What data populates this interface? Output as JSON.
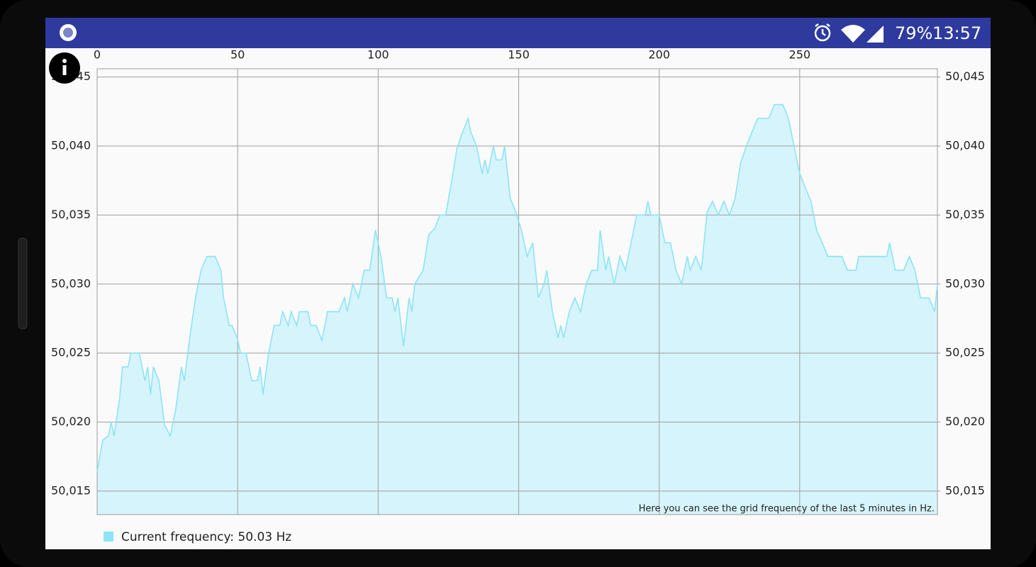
{
  "status_bar": {
    "battery": "79%",
    "time": "13:57"
  },
  "chart_data": {
    "type": "area",
    "annotation": "Here you can see the grid frequency of the last 5 minutes in Hz.",
    "x": [
      0,
      2,
      4,
      5,
      6,
      8,
      9,
      11,
      12,
      15,
      17,
      18,
      19,
      20,
      22,
      24,
      26,
      28,
      30,
      31,
      33,
      35,
      37,
      39,
      42,
      44,
      45,
      47,
      48,
      50,
      51,
      53,
      55,
      57,
      58,
      59,
      61,
      63,
      65,
      66,
      68,
      69,
      71,
      72,
      75,
      76,
      78,
      80,
      81,
      82,
      84,
      86,
      88,
      89,
      91,
      93,
      95,
      97,
      99,
      101,
      103,
      105,
      106,
      107,
      109,
      111,
      112,
      113,
      116,
      118,
      120,
      122,
      124,
      126,
      128,
      130,
      132,
      133,
      135,
      137,
      138,
      139,
      141,
      142,
      144,
      145,
      147,
      149,
      151,
      153,
      155,
      157,
      159,
      160,
      162,
      164,
      165,
      166,
      168,
      170,
      172,
      174,
      176,
      178,
      179,
      181,
      182,
      184,
      186,
      188,
      190,
      192,
      195,
      196,
      197,
      200,
      202,
      204,
      206,
      208,
      210,
      211,
      213,
      215,
      217,
      219,
      221,
      223,
      225,
      227,
      229,
      231,
      233,
      235,
      239,
      241,
      244,
      246,
      248,
      250,
      252,
      254,
      256,
      258,
      260,
      265,
      267,
      270,
      271,
      281,
      282,
      284,
      287,
      289,
      291,
      293,
      296,
      298,
      299
    ],
    "series": [
      {
        "name": "Current frequency: 50.03 Hz",
        "color": "#8de4f5",
        "fill": "#d6f4fb",
        "values": [
          50.0164,
          50.0187,
          50.019,
          50.02,
          50.019,
          50.0217,
          50.024,
          50.024,
          50.025,
          50.025,
          50.023,
          50.024,
          50.022,
          50.024,
          50.023,
          50.0198,
          50.019,
          50.021,
          50.024,
          50.023,
          50.0262,
          50.029,
          50.031,
          50.032,
          50.032,
          50.031,
          50.029,
          50.027,
          50.027,
          50.026,
          50.025,
          50.025,
          50.023,
          50.023,
          50.024,
          50.022,
          50.025,
          50.027,
          50.027,
          50.028,
          50.027,
          50.028,
          50.027,
          50.028,
          50.028,
          50.027,
          50.027,
          50.0259,
          50.027,
          50.028,
          50.028,
          50.028,
          50.029,
          50.028,
          50.03,
          50.029,
          50.031,
          50.031,
          50.0339,
          50.032,
          50.029,
          50.029,
          50.028,
          50.029,
          50.0255,
          50.029,
          50.028,
          50.03,
          50.031,
          50.0336,
          50.034,
          50.035,
          50.035,
          50.0373,
          50.0398,
          50.041,
          50.042,
          50.041,
          50.04,
          50.038,
          50.039,
          50.038,
          50.04,
          50.039,
          50.039,
          50.04,
          50.0362,
          50.0352,
          50.0339,
          50.032,
          50.033,
          50.029,
          50.03,
          50.031,
          50.028,
          50.0261,
          50.027,
          50.0261,
          50.028,
          50.029,
          50.028,
          50.03,
          50.031,
          50.031,
          50.0339,
          50.031,
          50.032,
          50.03,
          50.032,
          50.031,
          50.033,
          50.035,
          50.035,
          50.036,
          50.035,
          50.035,
          50.033,
          50.033,
          50.031,
          50.03,
          50.032,
          50.031,
          50.032,
          50.031,
          50.0352,
          50.036,
          50.035,
          50.036,
          50.035,
          50.0362,
          50.0388,
          50.04,
          50.041,
          50.042,
          50.042,
          50.043,
          50.043,
          50.042,
          50.04,
          50.038,
          50.037,
          50.036,
          50.0339,
          50.033,
          50.032,
          50.032,
          50.031,
          50.031,
          50.032,
          50.032,
          50.033,
          50.031,
          50.031,
          50.032,
          50.031,
          50.029,
          50.029,
          50.028,
          50.03
        ]
      }
    ],
    "xlim": [
      0,
      299
    ],
    "xticks": [
      0,
      50,
      100,
      150,
      200,
      250
    ],
    "ylim": [
      50.0133,
      50.0456
    ],
    "yticks": [
      {
        "value": 50.015,
        "label": "50,015"
      },
      {
        "value": 50.02,
        "label": "50,020"
      },
      {
        "value": 50.025,
        "label": "50,025"
      },
      {
        "value": 50.03,
        "label": "50,030"
      },
      {
        "value": 50.035,
        "label": "50,035"
      },
      {
        "value": 50.04,
        "label": "50,040"
      },
      {
        "value": 50.045,
        "label": "50,045"
      }
    ],
    "y2lim": [
      50.0133,
      50.0456
    ],
    "y2ticks": [
      {
        "value": 50.015,
        "label": "50,015"
      },
      {
        "value": 50.02,
        "label": "50,020"
      },
      {
        "value": 50.025,
        "label": "50,025"
      },
      {
        "value": 50.03,
        "label": "50,030"
      },
      {
        "value": 50.035,
        "label": "50,035"
      },
      {
        "value": 50.04,
        "label": "50,040"
      },
      {
        "value": 50.045,
        "label": "50,045"
      }
    ],
    "grid": true,
    "legend": "bottom-left"
  }
}
